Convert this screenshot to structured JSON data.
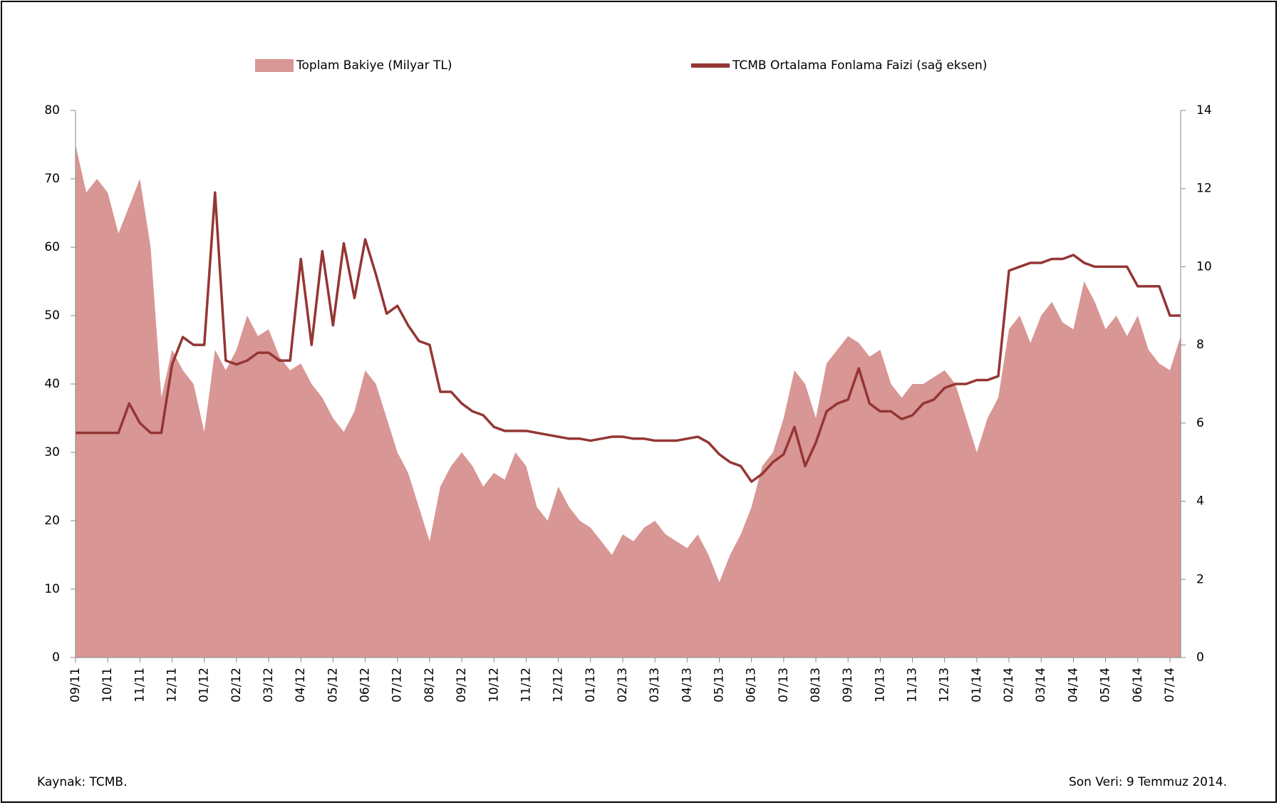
{
  "chart_data": {
    "type": "area-line",
    "categories": [
      "09/11",
      null,
      null,
      "10/11",
      null,
      null,
      "11/11",
      null,
      null,
      "12/11",
      null,
      null,
      "01/12",
      null,
      null,
      "02/12",
      null,
      null,
      "03/12",
      null,
      null,
      "04/12",
      null,
      null,
      "05/12",
      null,
      null,
      "06/12",
      null,
      null,
      "07/12",
      null,
      null,
      "08/12",
      null,
      null,
      "09/12",
      null,
      null,
      "10/12",
      null,
      null,
      "11/12",
      null,
      null,
      "12/12",
      null,
      null,
      "01/13",
      null,
      null,
      "02/13",
      null,
      null,
      "03/13",
      null,
      null,
      "04/13",
      null,
      null,
      "05/13",
      null,
      null,
      "06/13",
      null,
      null,
      "07/13",
      null,
      null,
      "08/13",
      null,
      null,
      "09/13",
      null,
      null,
      "10/13",
      null,
      null,
      "11/13",
      null,
      null,
      "12/13",
      null,
      null,
      "01/14",
      null,
      null,
      "02/14",
      null,
      null,
      "03/14",
      null,
      null,
      "04/14",
      null,
      null,
      "05/14",
      null,
      null,
      "06/14",
      null,
      null,
      "07/14",
      null
    ],
    "series": [
      {
        "name": "Toplam Bakiye (Milyar TL)",
        "color": "#d89694",
        "kind": "area",
        "axis": "y",
        "values": [
          75,
          68,
          70,
          68,
          62,
          66,
          70,
          60,
          38,
          45,
          42,
          40,
          33,
          45,
          42,
          45,
          50,
          47,
          48,
          44,
          42,
          43,
          40,
          38,
          35,
          33,
          36,
          42,
          40,
          35,
          30,
          27,
          22,
          17,
          25,
          28,
          30,
          28,
          25,
          27,
          26,
          30,
          28,
          22,
          20,
          25,
          22,
          20,
          19,
          17,
          15,
          18,
          17,
          19,
          20,
          18,
          17,
          16,
          18,
          15,
          11,
          15,
          18,
          22,
          28,
          30,
          35,
          42,
          40,
          35,
          43,
          45,
          47,
          46,
          44,
          45,
          40,
          38,
          40,
          40,
          41,
          42,
          40,
          35,
          30,
          35,
          38,
          48,
          50,
          46,
          50,
          52,
          49,
          48,
          55,
          52,
          48,
          50,
          47,
          50,
          45,
          43,
          42,
          47
        ]
      },
      {
        "name": "TCMB Ortalama Fonlama Faizi (sağ eksen)",
        "color": "#943634",
        "kind": "line",
        "axis": "y2",
        "values": [
          5.75,
          5.75,
          5.75,
          5.75,
          5.75,
          6.5,
          6.0,
          5.75,
          5.75,
          7.5,
          8.2,
          8.0,
          8.0,
          11.9,
          7.6,
          7.5,
          7.6,
          7.8,
          7.8,
          7.6,
          7.6,
          10.2,
          8.0,
          10.4,
          8.5,
          10.6,
          9.2,
          10.7,
          9.8,
          8.8,
          9.0,
          8.5,
          8.1,
          8.0,
          6.8,
          6.8,
          6.5,
          6.3,
          6.2,
          5.9,
          5.8,
          5.8,
          5.8,
          5.75,
          5.7,
          5.65,
          5.6,
          5.6,
          5.55,
          5.6,
          5.65,
          5.65,
          5.6,
          5.6,
          5.55,
          5.55,
          5.55,
          5.6,
          5.65,
          5.5,
          5.2,
          5.0,
          4.9,
          4.5,
          4.7,
          5.0,
          5.2,
          5.9,
          4.9,
          5.5,
          6.3,
          6.5,
          6.6,
          7.4,
          6.5,
          6.3,
          6.3,
          6.1,
          6.2,
          6.5,
          6.6,
          6.9,
          7.0,
          7.0,
          7.1,
          7.1,
          7.2,
          9.9,
          10.0,
          10.1,
          10.1,
          10.2,
          10.2,
          10.3,
          10.1,
          10.0,
          10.0,
          10.0,
          10.0,
          9.5,
          9.5,
          9.5,
          8.75,
          8.75
        ]
      }
    ],
    "ylim": [
      0,
      80
    ],
    "yticks": [
      0,
      10,
      20,
      30,
      40,
      50,
      60,
      70,
      80
    ],
    "y2lim": [
      0,
      14
    ],
    "y2ticks": [
      0,
      2,
      4,
      6,
      8,
      10,
      12,
      14
    ],
    "source": "Kaynak: TCMB.",
    "note": "Son Veri: 9 Temmuz 2014."
  }
}
